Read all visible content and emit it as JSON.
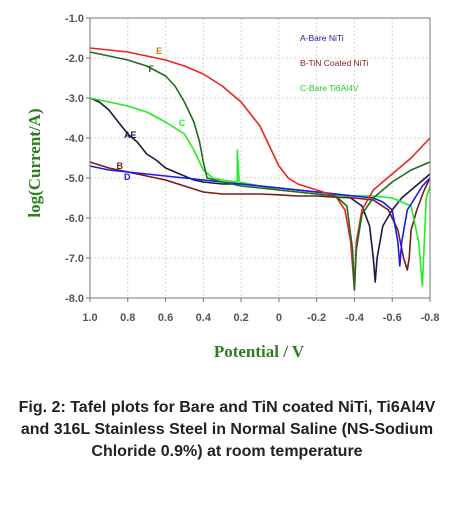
{
  "chart_data": {
    "type": "line",
    "title": "",
    "xlabel": "Potential / V",
    "ylabel": "log(Current/A)",
    "xlim": [
      1.0,
      -0.8
    ],
    "ylim": [
      -8.0,
      -1.0
    ],
    "x_reversed": true,
    "x_ticks": [
      "1.0",
      "0.8",
      "0.6",
      "0.4",
      "0.2",
      "0",
      "-0.2",
      "-0.4",
      "-0.6",
      "-0.8"
    ],
    "y_ticks": [
      "-1.0",
      "-2.0",
      "-3.0",
      "-4.0",
      "-5.0",
      "-6.0",
      "-7.0",
      "-8.0"
    ],
    "grid": true,
    "legend": [
      {
        "text": "A-Bare NiTi",
        "color": "#1a1a9a"
      },
      {
        "text": "B-TiN Coated NiTi",
        "color": "#8b1a1a"
      },
      {
        "text": "C-Bare Ti6Al4V",
        "color": "#22cc22"
      }
    ],
    "legend_position": "top-right",
    "series": [
      {
        "name": "A",
        "label": "AE",
        "color": "#1a1a40",
        "points": [
          [
            1.0,
            -3.0
          ],
          [
            0.95,
            -3.1
          ],
          [
            0.9,
            -3.3
          ],
          [
            0.85,
            -3.6
          ],
          [
            0.8,
            -3.9
          ],
          [
            0.75,
            -4.1
          ],
          [
            0.7,
            -4.4
          ],
          [
            0.65,
            -4.55
          ],
          [
            0.6,
            -4.75
          ],
          [
            0.55,
            -4.85
          ],
          [
            0.5,
            -4.95
          ],
          [
            0.45,
            -5.05
          ],
          [
            0.4,
            -5.1
          ],
          [
            0.3,
            -5.15
          ],
          [
            0.2,
            -5.15
          ],
          [
            0.1,
            -5.2
          ],
          [
            0.0,
            -5.25
          ],
          [
            -0.1,
            -5.3
          ],
          [
            -0.2,
            -5.35
          ],
          [
            -0.3,
            -5.4
          ],
          [
            -0.38,
            -5.5
          ],
          [
            -0.44,
            -5.7
          ],
          [
            -0.48,
            -6.2
          ],
          [
            -0.5,
            -7.0
          ],
          [
            -0.51,
            -7.6
          ],
          [
            -0.52,
            -7.0
          ],
          [
            -0.55,
            -6.2
          ],
          [
            -0.6,
            -5.8
          ],
          [
            -0.65,
            -5.5
          ],
          [
            -0.7,
            -5.3
          ],
          [
            -0.75,
            -5.1
          ],
          [
            -0.8,
            -4.9
          ]
        ]
      },
      {
        "name": "B",
        "label": "B",
        "color": "#7a1a1a",
        "points": [
          [
            1.0,
            -4.6
          ],
          [
            0.9,
            -4.75
          ],
          [
            0.8,
            -4.85
          ],
          [
            0.7,
            -4.95
          ],
          [
            0.6,
            -5.05
          ],
          [
            0.5,
            -5.2
          ],
          [
            0.4,
            -5.35
          ],
          [
            0.3,
            -5.4
          ],
          [
            0.2,
            -5.4
          ],
          [
            0.1,
            -5.4
          ],
          [
            0.0,
            -5.42
          ],
          [
            -0.1,
            -5.45
          ],
          [
            -0.2,
            -5.45
          ],
          [
            -0.3,
            -5.48
          ],
          [
            -0.4,
            -5.5
          ],
          [
            -0.5,
            -5.55
          ],
          [
            -0.58,
            -5.8
          ],
          [
            -0.63,
            -6.3
          ],
          [
            -0.66,
            -7.0
          ],
          [
            -0.68,
            -7.3
          ],
          [
            -0.69,
            -7.0
          ],
          [
            -0.7,
            -6.3
          ],
          [
            -0.73,
            -5.8
          ],
          [
            -0.77,
            -5.3
          ],
          [
            -0.8,
            -5.0
          ]
        ]
      },
      {
        "name": "C",
        "label": "C",
        "color": "#22ee22",
        "points": [
          [
            1.0,
            -3.0
          ],
          [
            0.9,
            -3.1
          ],
          [
            0.8,
            -3.2
          ],
          [
            0.7,
            -3.35
          ],
          [
            0.6,
            -3.6
          ],
          [
            0.5,
            -3.9
          ],
          [
            0.45,
            -4.3
          ],
          [
            0.4,
            -4.8
          ],
          [
            0.35,
            -5.0
          ],
          [
            0.3,
            -5.05
          ],
          [
            0.22,
            -5.1
          ],
          [
            0.22,
            -4.3
          ],
          [
            0.21,
            -5.1
          ],
          [
            0.1,
            -5.2
          ],
          [
            0.0,
            -5.3
          ],
          [
            -0.1,
            -5.35
          ],
          [
            -0.2,
            -5.4
          ],
          [
            -0.3,
            -5.45
          ],
          [
            -0.4,
            -5.45
          ],
          [
            -0.5,
            -5.45
          ],
          [
            -0.6,
            -5.5
          ],
          [
            -0.7,
            -5.7
          ],
          [
            -0.74,
            -6.6
          ],
          [
            -0.76,
            -7.7
          ],
          [
            -0.77,
            -6.6
          ],
          [
            -0.78,
            -5.5
          ],
          [
            -0.8,
            -5.2
          ]
        ]
      },
      {
        "name": "D",
        "label": "D",
        "color": "#1a1aee",
        "points": [
          [
            1.0,
            -4.7
          ],
          [
            0.9,
            -4.8
          ],
          [
            0.8,
            -4.85
          ],
          [
            0.7,
            -4.9
          ],
          [
            0.6,
            -4.95
          ],
          [
            0.5,
            -5.0
          ],
          [
            0.4,
            -5.05
          ],
          [
            0.3,
            -5.1
          ],
          [
            0.2,
            -5.15
          ],
          [
            0.1,
            -5.2
          ],
          [
            0.0,
            -5.25
          ],
          [
            -0.1,
            -5.3
          ],
          [
            -0.2,
            -5.35
          ],
          [
            -0.3,
            -5.4
          ],
          [
            -0.4,
            -5.45
          ],
          [
            -0.5,
            -5.5
          ],
          [
            -0.55,
            -5.6
          ],
          [
            -0.6,
            -5.8
          ],
          [
            -0.63,
            -6.6
          ],
          [
            -0.64,
            -7.2
          ],
          [
            -0.65,
            -6.6
          ],
          [
            -0.68,
            -5.8
          ],
          [
            -0.72,
            -5.5
          ],
          [
            -0.76,
            -5.2
          ],
          [
            -0.8,
            -5.0
          ]
        ]
      },
      {
        "name": "E",
        "label": "E",
        "color": "#ee2222",
        "points": [
          [
            1.0,
            -1.75
          ],
          [
            0.9,
            -1.8
          ],
          [
            0.8,
            -1.85
          ],
          [
            0.7,
            -1.95
          ],
          [
            0.6,
            -2.05
          ],
          [
            0.5,
            -2.2
          ],
          [
            0.4,
            -2.4
          ],
          [
            0.3,
            -2.7
          ],
          [
            0.2,
            -3.1
          ],
          [
            0.1,
            -3.7
          ],
          [
            0.05,
            -4.2
          ],
          [
            0.0,
            -4.7
          ],
          [
            -0.05,
            -5.0
          ],
          [
            -0.1,
            -5.15
          ],
          [
            -0.2,
            -5.3
          ],
          [
            -0.3,
            -5.45
          ],
          [
            -0.35,
            -5.8
          ],
          [
            -0.38,
            -6.6
          ],
          [
            -0.4,
            -7.8
          ],
          [
            -0.41,
            -6.6
          ],
          [
            -0.44,
            -5.8
          ],
          [
            -0.5,
            -5.3
          ],
          [
            -0.6,
            -4.9
          ],
          [
            -0.7,
            -4.5
          ],
          [
            -0.8,
            -4.0
          ]
        ]
      },
      {
        "name": "F",
        "label": "F",
        "color": "#1f6b1f",
        "points": [
          [
            1.0,
            -1.85
          ],
          [
            0.9,
            -1.95
          ],
          [
            0.8,
            -2.05
          ],
          [
            0.7,
            -2.2
          ],
          [
            0.6,
            -2.45
          ],
          [
            0.55,
            -2.7
          ],
          [
            0.5,
            -3.1
          ],
          [
            0.45,
            -3.6
          ],
          [
            0.42,
            -4.1
          ],
          [
            0.4,
            -4.6
          ],
          [
            0.38,
            -5.0
          ],
          [
            0.3,
            -5.1
          ],
          [
            0.2,
            -5.2
          ],
          [
            0.1,
            -5.25
          ],
          [
            0.0,
            -5.3
          ],
          [
            -0.1,
            -5.35
          ],
          [
            -0.2,
            -5.4
          ],
          [
            -0.3,
            -5.45
          ],
          [
            -0.36,
            -5.7
          ],
          [
            -0.39,
            -6.8
          ],
          [
            -0.4,
            -7.8
          ],
          [
            -0.41,
            -6.8
          ],
          [
            -0.44,
            -5.9
          ],
          [
            -0.5,
            -5.5
          ],
          [
            -0.6,
            -5.1
          ],
          [
            -0.7,
            -4.8
          ],
          [
            -0.8,
            -4.6
          ]
        ]
      }
    ]
  },
  "caption": "Fig. 2: Tafel plots for Bare and TiN coated NiTi, Ti6Al4V and 316L Stainless Steel in Normal Saline (NS-Sodium Chloride 0.9%) at room temperature"
}
